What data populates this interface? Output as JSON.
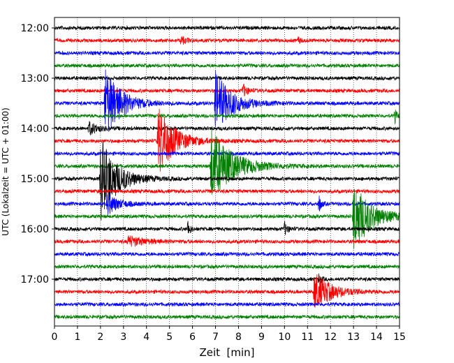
{
  "chart_data": {
    "type": "seismogram",
    "xlabel": "Zeit  [min]",
    "ylabel": "UTC (Lokalzeit = UTC + 01:00)",
    "xlim": [
      0,
      15
    ],
    "x_ticks": [
      0,
      1,
      2,
      3,
      4,
      5,
      6,
      7,
      8,
      9,
      10,
      11,
      12,
      13,
      14,
      15
    ],
    "x_grid": "dotted vertical lines at each minute",
    "traces_per_hour": 4,
    "trace_interval_min": 15,
    "start_time": "12:00",
    "y_ticks": [
      "12:00",
      "13:00",
      "14:00",
      "15:00",
      "16:00",
      "17:00"
    ],
    "colors": [
      "#000000",
      "#ff0000",
      "#0000ff",
      "#008000"
    ],
    "traces": [
      {
        "time": "12:00",
        "color": "#000000",
        "events": []
      },
      {
        "time": "12:15",
        "color": "#ff0000",
        "events": [
          {
            "t": 5.5,
            "amp": 0.35,
            "dur": 0.5
          },
          {
            "t": 10.6,
            "amp": 0.3,
            "dur": 0.2
          }
        ]
      },
      {
        "time": "12:30",
        "color": "#0000ff",
        "events": []
      },
      {
        "time": "12:45",
        "color": "#008000",
        "events": []
      },
      {
        "time": "13:00",
        "color": "#000000",
        "events": []
      },
      {
        "time": "13:15",
        "color": "#ff0000",
        "events": [
          {
            "t": 8.2,
            "amp": 0.6,
            "dur": 0.4
          }
        ]
      },
      {
        "time": "13:30",
        "color": "#0000ff",
        "events": [
          {
            "t": 2.2,
            "amp": 3.2,
            "dur": 1.5
          },
          {
            "t": 7.0,
            "amp": 2.8,
            "dur": 1.5
          }
        ]
      },
      {
        "time": "13:45",
        "color": "#008000",
        "events": [
          {
            "t": 14.8,
            "amp": 0.6,
            "dur": 0.2
          }
        ]
      },
      {
        "time": "14:00",
        "color": "#000000",
        "events": [
          {
            "t": 1.5,
            "amp": 0.6,
            "dur": 0.8
          }
        ]
      },
      {
        "time": "14:15",
        "color": "#ff0000",
        "events": [
          {
            "t": 4.5,
            "amp": 3.2,
            "dur": 1.5
          }
        ]
      },
      {
        "time": "14:30",
        "color": "#0000ff",
        "events": []
      },
      {
        "time": "14:45",
        "color": "#008000",
        "events": [
          {
            "t": 6.8,
            "amp": 3.4,
            "dur": 2.0
          }
        ]
      },
      {
        "time": "15:00",
        "color": "#000000",
        "events": [
          {
            "t": 2.0,
            "amp": 3.8,
            "dur": 1.5
          }
        ]
      },
      {
        "time": "15:15",
        "color": "#ff0000",
        "events": []
      },
      {
        "time": "15:30",
        "color": "#0000ff",
        "events": [
          {
            "t": 2.3,
            "amp": 1.0,
            "dur": 1.0
          },
          {
            "t": 11.5,
            "amp": 0.8,
            "dur": 0.2
          }
        ]
      },
      {
        "time": "15:45",
        "color": "#008000",
        "events": [
          {
            "t": 13.0,
            "amp": 3.2,
            "dur": 1.6
          }
        ]
      },
      {
        "time": "16:00",
        "color": "#000000",
        "events": [
          {
            "t": 5.8,
            "amp": 0.8,
            "dur": 0.2
          },
          {
            "t": 10.0,
            "amp": 0.6,
            "dur": 0.3
          }
        ]
      },
      {
        "time": "16:15",
        "color": "#ff0000",
        "events": [
          {
            "t": 3.2,
            "amp": 0.5,
            "dur": 1.5
          }
        ]
      },
      {
        "time": "16:30",
        "color": "#0000ff",
        "events": []
      },
      {
        "time": "16:45",
        "color": "#008000",
        "events": []
      },
      {
        "time": "17:00",
        "color": "#000000",
        "events": [
          {
            "t": 11.5,
            "amp": 0.6,
            "dur": 0.2
          }
        ]
      },
      {
        "time": "17:15",
        "color": "#ff0000",
        "events": [
          {
            "t": 11.3,
            "amp": 1.8,
            "dur": 1.5
          }
        ]
      },
      {
        "time": "17:30",
        "color": "#0000ff",
        "events": []
      },
      {
        "time": "17:45",
        "color": "#008000",
        "events": []
      }
    ]
  }
}
